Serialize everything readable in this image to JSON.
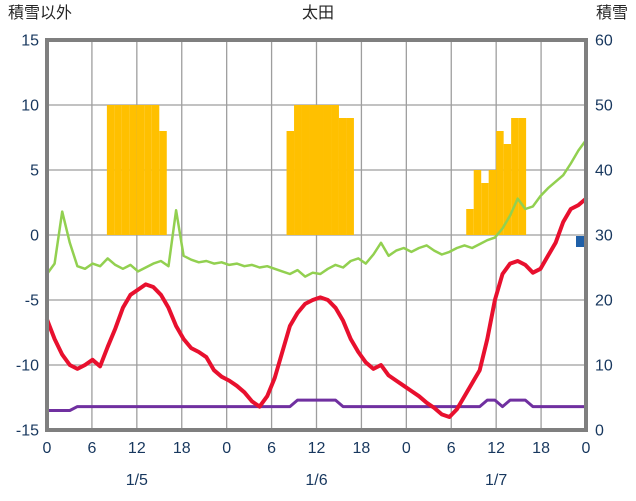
{
  "chart_data": {
    "type": "line",
    "title": "太田",
    "left_axis": {
      "title": "積雪以外",
      "lim": [
        -15,
        15
      ],
      "ticks": [
        15,
        10,
        5,
        0,
        -5,
        -10,
        -15
      ]
    },
    "right_axis": {
      "title": "積雪",
      "lim": [
        0,
        60
      ],
      "ticks": [
        60,
        50,
        40,
        30,
        20,
        10,
        0
      ]
    },
    "x_axis": {
      "hours_total": 72,
      "tick_step": 6,
      "tick_labels": [
        "0",
        "6",
        "12",
        "18",
        "0",
        "6",
        "12",
        "18",
        "0",
        "6",
        "12",
        "18",
        "0"
      ],
      "day_labels": [
        {
          "label": "1/5",
          "hour": 12
        },
        {
          "label": "1/6",
          "hour": 36
        },
        {
          "label": "1/7",
          "hour": 60
        }
      ]
    },
    "grid": {
      "line_color": "#9e9e9e",
      "border_color": "#7f7f7f",
      "tick_text_color": "#17375e"
    },
    "series": [
      {
        "name": "sunshine-bars",
        "type": "bar",
        "color": "#ffc000",
        "points": [
          [
            8,
            10
          ],
          [
            9,
            10
          ],
          [
            10,
            10
          ],
          [
            11,
            10
          ],
          [
            12,
            10
          ],
          [
            13,
            10
          ],
          [
            14,
            10
          ],
          [
            15,
            8
          ],
          [
            32,
            8
          ],
          [
            33,
            10
          ],
          [
            34,
            10
          ],
          [
            35,
            10
          ],
          [
            36,
            10
          ],
          [
            37,
            10
          ],
          [
            38,
            10
          ],
          [
            39,
            9
          ],
          [
            40,
            9
          ],
          [
            56,
            2
          ],
          [
            57,
            5
          ],
          [
            58,
            4
          ],
          [
            59,
            5
          ],
          [
            60,
            8
          ],
          [
            61,
            7
          ],
          [
            62,
            9
          ],
          [
            63,
            9
          ]
        ]
      },
      {
        "name": "green-line",
        "type": "line",
        "color": "#92d050",
        "width": 2.5,
        "values": [
          -3.0,
          -2.2,
          1.8,
          -0.6,
          -2.4,
          -2.6,
          -2.2,
          -2.4,
          -1.8,
          -2.3,
          -2.6,
          -2.3,
          -2.8,
          -2.5,
          -2.2,
          -2.0,
          -2.4,
          1.9,
          -1.6,
          -1.9,
          -2.1,
          -2.0,
          -2.2,
          -2.1,
          -2.3,
          -2.2,
          -2.4,
          -2.3,
          -2.5,
          -2.4,
          -2.6,
          -2.8,
          -3.0,
          -2.7,
          -3.2,
          -2.9,
          -3.0,
          -2.6,
          -2.3,
          -2.5,
          -2.0,
          -1.8,
          -2.2,
          -1.5,
          -0.6,
          -1.6,
          -1.2,
          -1.0,
          -1.3,
          -1.0,
          -0.8,
          -1.2,
          -1.5,
          -1.3,
          -1.0,
          -0.8,
          -1.0,
          -0.7,
          -0.4,
          -0.2,
          0.5,
          1.5,
          2.8,
          2.0,
          2.2,
          3.0,
          3.6,
          4.1,
          4.6,
          5.5,
          6.5,
          7.3
        ]
      },
      {
        "name": "purple-line",
        "type": "line",
        "color": "#7030a0",
        "width": 3,
        "values": [
          -13.5,
          -13.5,
          -13.5,
          -13.5,
          -13.2,
          -13.2,
          -13.2,
          -13.2,
          -13.2,
          -13.2,
          -13.2,
          -13.2,
          -13.2,
          -13.2,
          -13.2,
          -13.2,
          -13.2,
          -13.2,
          -13.2,
          -13.2,
          -13.2,
          -13.2,
          -13.2,
          -13.2,
          -13.2,
          -13.2,
          -13.2,
          -13.2,
          -13.2,
          -13.2,
          -13.2,
          -13.2,
          -13.2,
          -12.7,
          -12.7,
          -12.7,
          -12.7,
          -12.7,
          -12.7,
          -13.2,
          -13.2,
          -13.2,
          -13.2,
          -13.2,
          -13.2,
          -13.2,
          -13.2,
          -13.2,
          -13.2,
          -13.2,
          -13.2,
          -13.2,
          -13.2,
          -13.2,
          -13.2,
          -13.2,
          -13.2,
          -13.2,
          -12.7,
          -12.7,
          -13.2,
          -12.7,
          -12.7,
          -12.7,
          -13.2,
          -13.2,
          -13.2,
          -13.2,
          -13.2,
          -13.2,
          -13.2,
          -13.2
        ]
      },
      {
        "name": "red-line",
        "type": "line",
        "color": "#e8102e",
        "width": 4,
        "values": [
          -6.5,
          -8.0,
          -9.2,
          -10.0,
          -10.3,
          -10.0,
          -9.6,
          -10.1,
          -8.6,
          -7.2,
          -5.6,
          -4.6,
          -4.2,
          -3.8,
          -4.0,
          -4.6,
          -5.6,
          -7.0,
          -8.0,
          -8.7,
          -9.0,
          -9.4,
          -10.4,
          -10.9,
          -11.2,
          -11.6,
          -12.1,
          -12.8,
          -13.2,
          -12.4,
          -11.0,
          -9.0,
          -7.0,
          -6.0,
          -5.3,
          -5.0,
          -4.8,
          -5.0,
          -5.6,
          -6.6,
          -8.0,
          -9.0,
          -9.8,
          -10.3,
          -10.0,
          -10.8,
          -11.2,
          -11.6,
          -12.0,
          -12.4,
          -12.9,
          -13.3,
          -13.8,
          -14.0,
          -13.4,
          -12.4,
          -11.4,
          -10.4,
          -8.0,
          -5.0,
          -3.0,
          -2.2,
          -2.0,
          -2.3,
          -2.9,
          -2.6,
          -1.6,
          -0.6,
          1.0,
          2.0,
          2.3,
          2.8
        ]
      },
      {
        "name": "snow-depth-marker",
        "type": "point",
        "color": "#2060a8",
        "axis": "right",
        "hour": 71,
        "value": 29
      }
    ]
  }
}
